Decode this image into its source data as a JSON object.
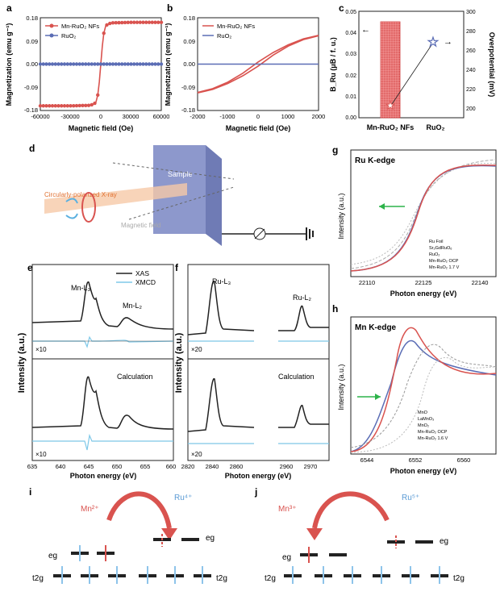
{
  "panel_letters": {
    "a": "a",
    "b": "b",
    "c": "c",
    "d": "d",
    "e": "e",
    "f": "f",
    "g": "g",
    "h": "h",
    "i": "i",
    "j": "j"
  },
  "colors": {
    "red": "#d9534f",
    "blue": "#5b6db5",
    "cyan": "#7ec8e8",
    "black": "#222222",
    "green": "#2db34a"
  },
  "chart_data": [
    {
      "id": "a",
      "type": "line",
      "xlabel": "Magnetic field (Oe)",
      "ylabel": "Magnetization (emu g⁻¹)",
      "xlim": [
        -60000,
        60000
      ],
      "ylim": [
        -0.18,
        0.18
      ],
      "xticks": [
        "-60000",
        "-30000",
        "0",
        "30000",
        "60000"
      ],
      "yticks": [
        "-0.18",
        "-0.09",
        "0.00",
        "0.09",
        "0.18"
      ],
      "legend": [
        "Mn-RuO₂ NFs",
        "RuO₂"
      ],
      "series": [
        {
          "name": "Mn-RuO₂ NFs",
          "x": [
            -60000,
            -30000,
            -10000,
            -5000,
            -3000,
            -1500,
            0,
            1500,
            3000,
            5000,
            10000,
            30000,
            60000
          ],
          "y": [
            -0.162,
            -0.162,
            -0.16,
            -0.15,
            -0.12,
            -0.07,
            0,
            0.07,
            0.12,
            0.15,
            0.16,
            0.162,
            0.162
          ]
        },
        {
          "name": "RuO₂",
          "x": [
            -60000,
            60000
          ],
          "y": [
            0,
            0
          ]
        }
      ]
    },
    {
      "id": "b",
      "type": "line",
      "xlabel": "Magnetic field (Oe)",
      "ylabel": "Magnetization (emu g⁻¹)",
      "xlim": [
        -2000,
        2000
      ],
      "ylim": [
        -0.18,
        0.18
      ],
      "xticks": [
        "-2000",
        "-1000",
        "0",
        "1000",
        "2000"
      ],
      "yticks": [
        "-0.18",
        "-0.09",
        "0.00",
        "0.09",
        "0.18"
      ],
      "legend": [
        "Mn-RuO₂ NFs",
        "RuO₂"
      ],
      "series": [
        {
          "name": "Mn-RuO₂ NFs",
          "x": [
            -2000,
            -1500,
            -1000,
            -500,
            0,
            500,
            1000,
            1500,
            2000
          ],
          "y": [
            -0.11,
            -0.095,
            -0.07,
            -0.035,
            0.008,
            0.045,
            0.075,
            0.098,
            0.112
          ]
        },
        {
          "name": "Mn-RuO₂ NFs",
          "x": [
            -2000,
            -1500,
            -1000,
            -500,
            0,
            500,
            1000,
            1500,
            2000
          ],
          "y": [
            -0.112,
            -0.098,
            -0.075,
            -0.045,
            -0.008,
            0.035,
            0.07,
            0.095,
            0.11
          ]
        },
        {
          "name": "RuO₂",
          "x": [
            -2000,
            2000
          ],
          "y": [
            0,
            0
          ]
        }
      ]
    },
    {
      "id": "c",
      "type": "bar",
      "categories": [
        "Mn-RuO₂ NFs",
        "RuO₂"
      ],
      "ylabel": "B_Ru (μB / f. u.)",
      "y2label": "Overpotential (mV)",
      "ylim": [
        0,
        0.05
      ],
      "y2lim": [
        190,
        300
      ],
      "yticks": [
        "0.00",
        "0.01",
        "0.02",
        "0.03",
        "0.04",
        "0.05"
      ],
      "y2ticks": [
        "200",
        "220",
        "240",
        "260",
        "280",
        "300"
      ],
      "bar_values": [
        0.045,
        0
      ],
      "overpotential": [
        200,
        268
      ]
    },
    {
      "id": "e",
      "type": "line",
      "xlabel": "Photon energy (eV)",
      "ylabel": "Intensity (a.u.)",
      "xticks": [
        "635",
        "640",
        "645",
        "650",
        "655",
        "660"
      ],
      "labels": {
        "mn_l3": "Mn-L₃",
        "mn_l2": "Mn-L₂",
        "calc": "Calculation",
        "x10a": "×10",
        "x10b": "×10"
      },
      "legend": [
        "XAS",
        "XMCD"
      ]
    },
    {
      "id": "f",
      "type": "line",
      "xlabel": "Photon energy (eV)",
      "ylabel": "Intensity (a.u.)",
      "xticks": [
        "2820",
        "2840",
        "2860",
        "2960",
        "2970"
      ],
      "labels": {
        "ru_l3": "Ru-L₃",
        "ru_l2": "Ru-L₂",
        "calc": "Calculation",
        "x20a": "×20",
        "x20b": "×20"
      }
    },
    {
      "id": "g",
      "type": "line",
      "title": "Ru K-edge",
      "xlabel": "Photon energy (eV)",
      "ylabel": "Intensity (a.u.)",
      "xticks": [
        "22110",
        "22125",
        "22140"
      ],
      "legend": [
        "Ru Foil",
        "Sr₂GdRuO₆",
        "RuO₂",
        "Mn-RuO₂ OCP",
        "Mn-RuO₂ 1.7 V"
      ]
    },
    {
      "id": "h",
      "type": "line",
      "title": "Mn K-edge",
      "xlabel": "Photon energy (eV)",
      "ylabel": "Intensity (a.u.)",
      "xticks": [
        "6544",
        "6552",
        "6560"
      ],
      "legend": [
        "MnO",
        "LaMnO₃",
        "MnO₂",
        "Mn-RuO₂ OCP",
        "Mn-RuO₂ 1.6 V"
      ]
    }
  ],
  "diagram_d": {
    "sample": "Sample",
    "xray": "Circularly-polarized X-ray",
    "field": "Magnetic field"
  },
  "diagram_i": {
    "mn": "Mn²⁺",
    "ru": "Ru⁴⁺",
    "eg_l": "eg",
    "eg_r": "eg",
    "t2g_l": "t2g",
    "t2g_r": "t2g"
  },
  "diagram_j": {
    "mn": "Mn³⁺",
    "ru": "Ru⁵⁺",
    "eg_l": "eg",
    "eg_r": "eg",
    "t2g_l": "t2g",
    "t2g_r": "t2g"
  }
}
